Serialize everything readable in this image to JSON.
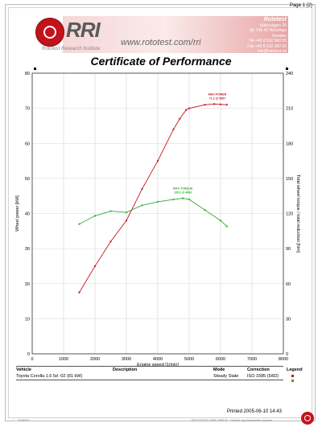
{
  "page": {
    "page_number": "Page 1 (2)"
  },
  "header": {
    "logo_text": "RRI",
    "logo_subtitle": "Rototest Research Institute",
    "website": "www.rototest.com/rri",
    "company": "Rototest",
    "address_lines": [
      "Sätesvägen 20",
      "SE-146 42 Rönninge",
      "Sweden",
      "Tel +46 8 532 560 55",
      "Fax +46 8 532 560 56",
      "info@rototest.se"
    ]
  },
  "title": "Certificate of Performance",
  "chart_data": {
    "type": "line",
    "title": "Certificate of Performance",
    "xlabel": "Engine speed [1/min]",
    "ylabel": "Wheel power [kW]",
    "y2label": "Total wheel torque / total reduction [Nm]",
    "xlim": [
      0,
      8000
    ],
    "ylim": [
      0,
      80
    ],
    "y2lim": [
      0,
      240
    ],
    "xticks": [
      0,
      1000,
      2000,
      3000,
      4000,
      5000,
      6000,
      7000,
      8000
    ],
    "yticks": [
      0,
      10,
      20,
      30,
      40,
      50,
      60,
      70,
      80
    ],
    "y2ticks": [
      0,
      30,
      60,
      90,
      120,
      150,
      180,
      210,
      240
    ],
    "grid": true,
    "series": [
      {
        "name": "Power",
        "color": "#cc1020",
        "axis": "left",
        "x": [
          1500,
          2000,
          2500,
          3000,
          3500,
          4000,
          4500,
          4700,
          4900,
          5000,
          5500,
          5800,
          6000,
          6200
        ],
        "y": [
          17.5,
          25,
          32,
          38,
          47,
          55,
          64,
          67,
          69.5,
          70,
          71,
          71.2,
          71.1,
          71
        ]
      },
      {
        "name": "Torque",
        "color": "#33a833",
        "axis": "right",
        "x": [
          1500,
          2000,
          2500,
          3000,
          3500,
          4000,
          4500,
          4800,
          5000,
          5500,
          6000,
          6200
        ],
        "y": [
          111,
          118,
          122,
          121,
          127,
          130,
          132,
          133,
          132,
          123,
          114,
          109
        ]
      }
    ],
    "annotations": [
      {
        "series": "Power",
        "label": "MAX POWER",
        "value": "71.2 @ 5897",
        "x": 5897,
        "y": 71.2
      },
      {
        "series": "Torque",
        "label": "MAX TORQUE",
        "value": "133.0 @ 4800",
        "x": 4800,
        "y": 133
      }
    ]
  },
  "table": {
    "headers": {
      "vehicle": "Vehicle",
      "description": "Description",
      "mode": "Mode",
      "correction": "Correction",
      "legend": "Legend"
    },
    "row": {
      "vehicle": "Toyota Corolla 1.6 5d -02 (81 kW)",
      "description": "",
      "mode": "Steady State",
      "correction": "ISO 1585 (5/82)"
    }
  },
  "footer": {
    "printed": "Printed 2005-06-10 14:43",
    "code": "T04625",
    "note": "ROTOTEST VPA / RRI ® - Vehicle dynamometer system"
  },
  "colors": {
    "accent": "#c4121a",
    "power": "#cc1020",
    "torque": "#33a833"
  }
}
